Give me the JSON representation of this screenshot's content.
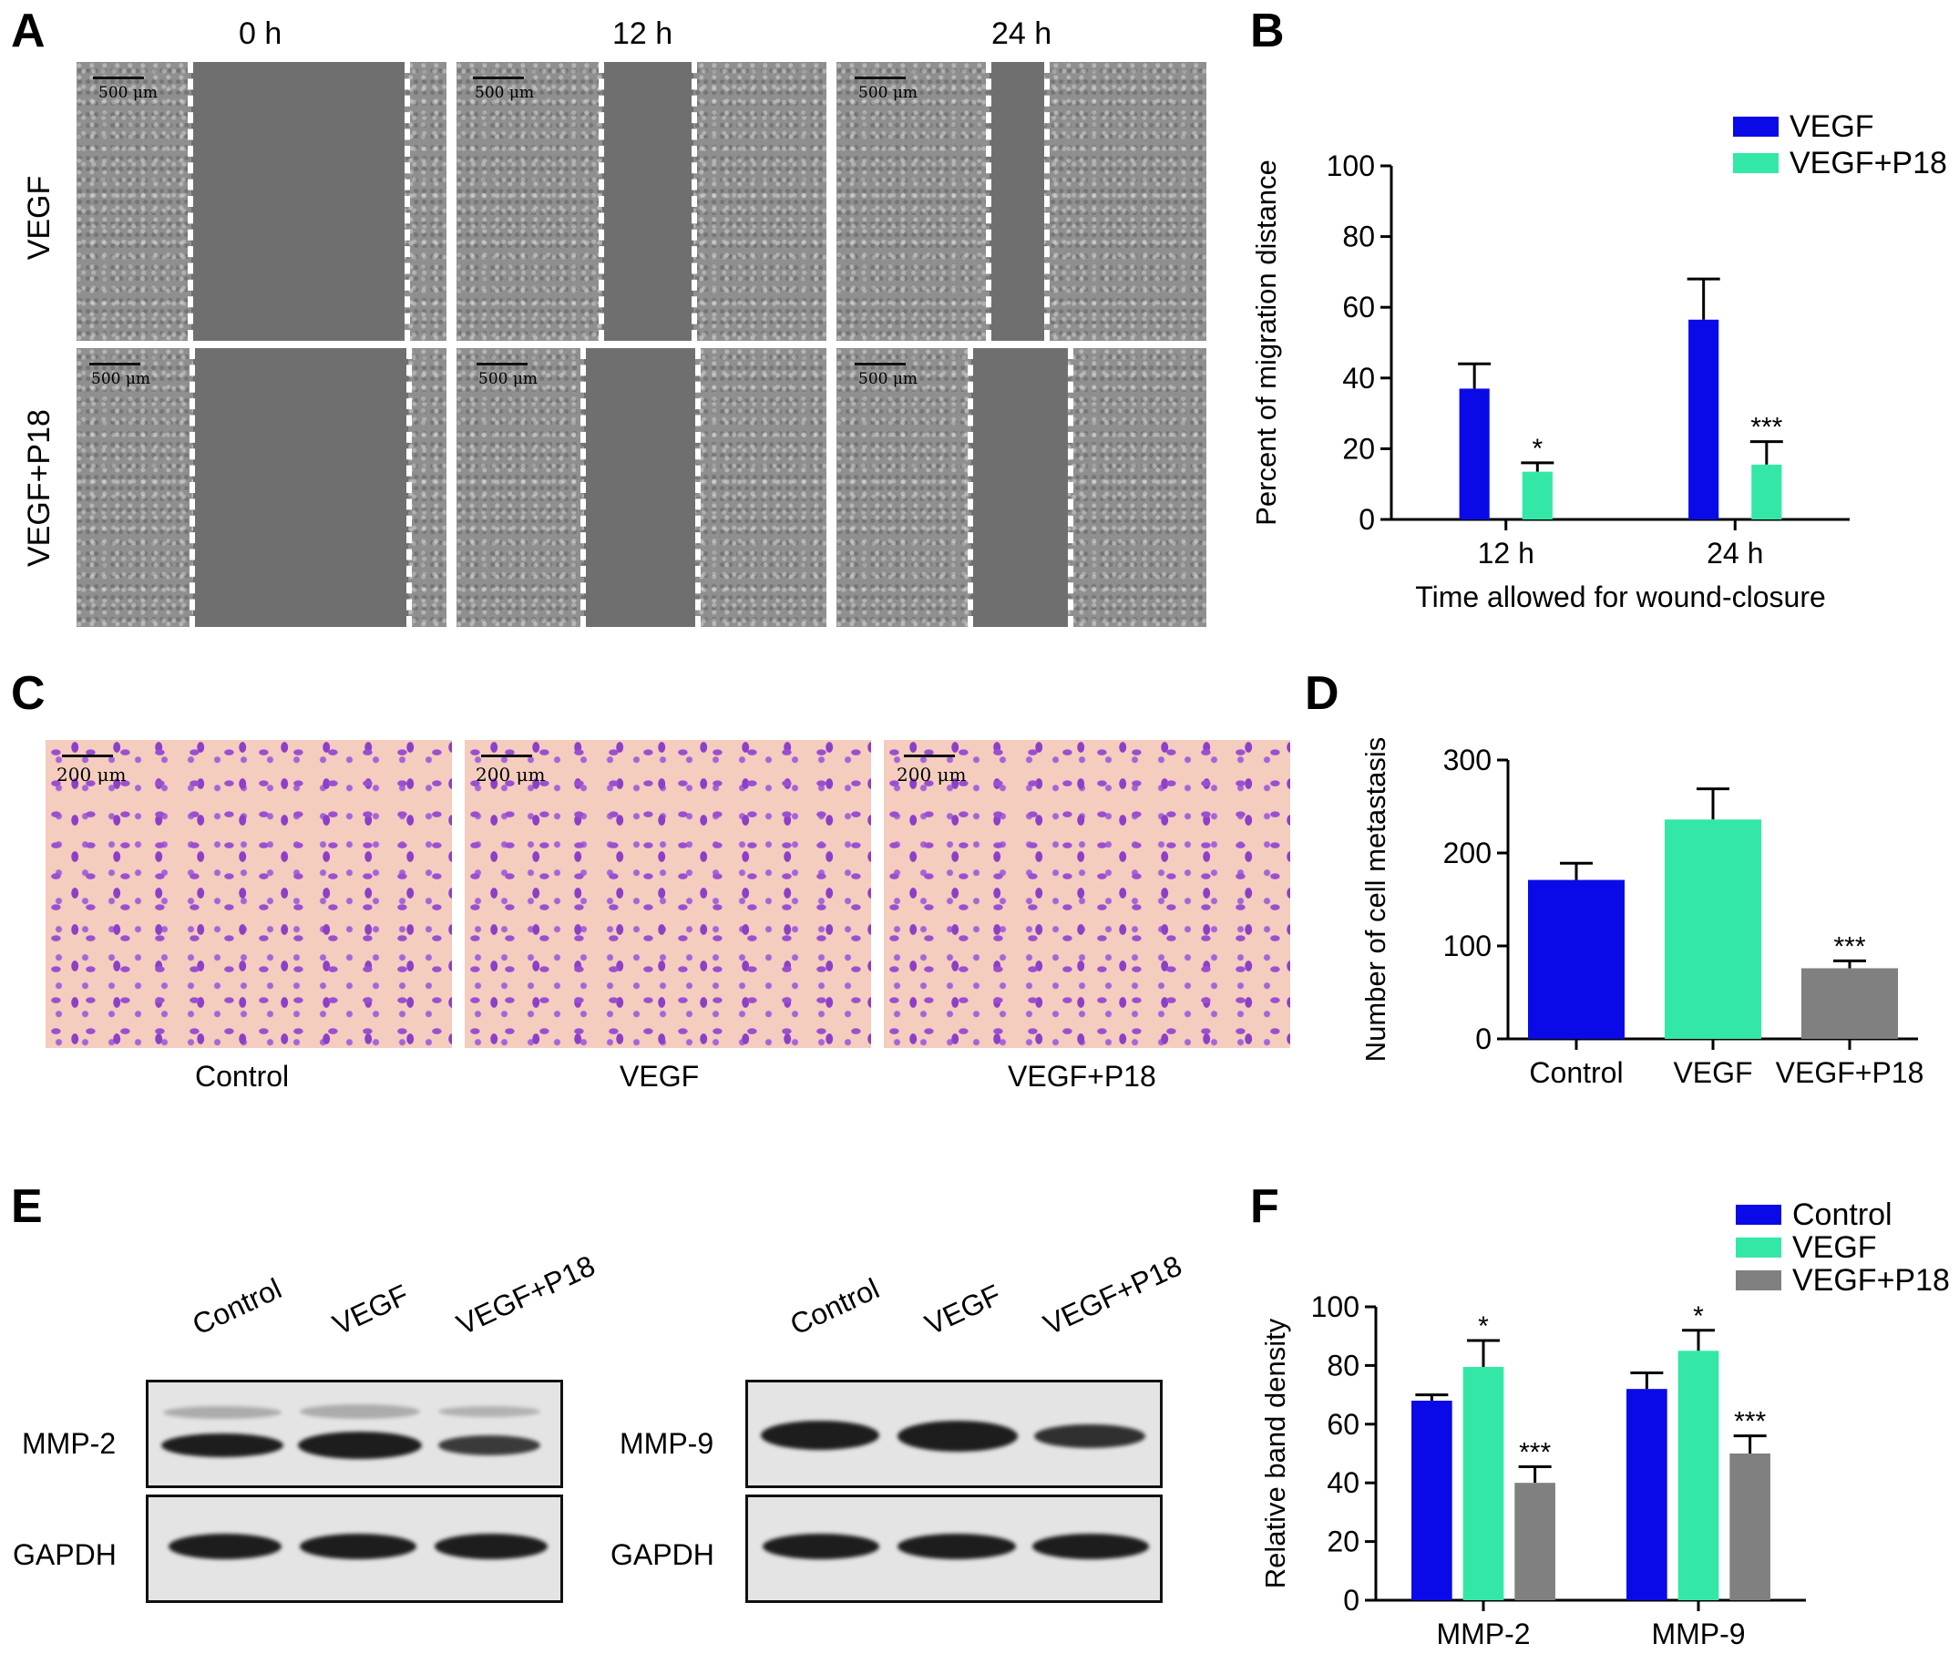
{
  "panels": {
    "a": "A",
    "b": "B",
    "c": "C",
    "d": "D",
    "e": "E",
    "f": "F"
  },
  "panel_a": {
    "time_headers": [
      "0 h",
      "12 h",
      "24 h"
    ],
    "row_labels": [
      "VEGF",
      "VEGF+P18"
    ],
    "scale_bar": "500 μm"
  },
  "panel_c": {
    "labels": [
      "Control",
      "VEGF",
      "VEGF+P18"
    ],
    "scale_bar": "200 μm"
  },
  "panel_e": {
    "blot1": {
      "lanes": [
        "Control",
        "VEGF",
        "VEGF+P18"
      ],
      "rows": [
        "MMP-2",
        "GAPDH"
      ]
    },
    "blot2": {
      "lanes": [
        "Control",
        "VEGF",
        "VEGF+P18"
      ],
      "rows": [
        "MMP-9",
        "GAPDH"
      ]
    }
  },
  "colors": {
    "blue": "#0a0ae8",
    "green": "#33e8a6",
    "gray": "#808080"
  },
  "chart_data": [
    {
      "id": "B",
      "type": "bar",
      "categories": [
        "12 h",
        "24 h"
      ],
      "series": [
        {
          "name": "VEGF",
          "values": [
            37,
            56.5
          ],
          "errors": [
            7,
            11.5
          ],
          "color": "#0a0ae8",
          "sig": [
            "",
            ""
          ]
        },
        {
          "name": "VEGF+P18",
          "values": [
            13.5,
            15.5
          ],
          "errors": [
            2.5,
            6.5
          ],
          "color": "#33e8a6",
          "sig": [
            "*",
            "***"
          ]
        }
      ],
      "xlabel": "Time allowed for wound-closure",
      "ylabel": "Percent of migration distance",
      "ylim": [
        0,
        100
      ],
      "yticks": [
        0,
        20,
        40,
        60,
        80,
        100
      ],
      "legend": "top-right"
    },
    {
      "id": "D",
      "type": "bar",
      "categories": [
        "Control",
        "VEGF",
        "VEGF+P18"
      ],
      "values": [
        171,
        236,
        76
      ],
      "errors": [
        18,
        33,
        8
      ],
      "colors": [
        "#0a0ae8",
        "#33e8a6",
        "#808080"
      ],
      "sig": [
        "",
        "",
        "***"
      ],
      "ylabel": "Number of cell metastasis",
      "ylim": [
        0,
        300
      ],
      "yticks": [
        0,
        100,
        200,
        300
      ]
    },
    {
      "id": "F",
      "type": "bar",
      "categories": [
        "MMP-2",
        "MMP-9"
      ],
      "series": [
        {
          "name": "Control",
          "values": [
            68,
            72
          ],
          "errors": [
            2,
            5.5
          ],
          "color": "#0a0ae8",
          "sig": [
            "",
            ""
          ]
        },
        {
          "name": "VEGF",
          "values": [
            79.5,
            85
          ],
          "errors": [
            9,
            7
          ],
          "color": "#33e8a6",
          "sig": [
            "*",
            "*"
          ]
        },
        {
          "name": "VEGF+P18",
          "values": [
            40,
            50
          ],
          "errors": [
            5.5,
            6
          ],
          "color": "#808080",
          "sig": [
            "***",
            "***"
          ]
        }
      ],
      "ylabel": "Relative band density",
      "ylim": [
        0,
        100
      ],
      "yticks": [
        0,
        20,
        40,
        60,
        80,
        100
      ],
      "legend": "top-right"
    }
  ]
}
